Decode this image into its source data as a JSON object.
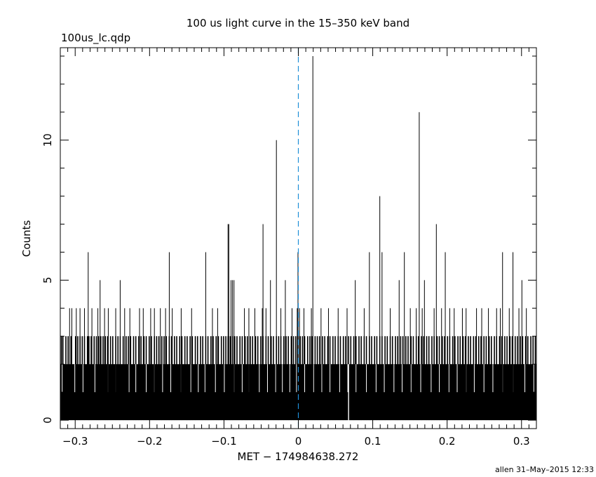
{
  "chart_data": {
    "type": "bar",
    "title": "100 us light curve in the 15–350 keV band",
    "subtitle": "100us_lc.qdp",
    "xlabel": "MET − 174984638.272",
    "ylabel": "Counts",
    "footer": "allen 31–May–2015 12:33",
    "xlim": [
      -0.32,
      0.32
    ],
    "ylim": [
      -0.3,
      13.3
    ],
    "x_ticks": [
      -0.3,
      -0.2,
      -0.1,
      0,
      0.1,
      0.2,
      0.3
    ],
    "x_tick_labels": [
      "−0.3",
      "−0.2",
      "−0.1",
      "0",
      "0.1",
      "0.2",
      "0.3"
    ],
    "y_ticks": [
      0,
      5,
      10
    ],
    "y_tick_labels": [
      "0",
      "5",
      "10"
    ],
    "bin_width": 0.0001,
    "baseline_counts": 2,
    "reference_line_x": 0,
    "reference_line_color": "#1f8fd8",
    "bar_color": "#000000",
    "grid": false,
    "spikes": [
      {
        "x": -0.3075,
        "y": 4
      },
      {
        "x": -0.3045,
        "y": 4
      },
      {
        "x": -0.2985,
        "y": 4
      },
      {
        "x": -0.2935,
        "y": 4
      },
      {
        "x": -0.2875,
        "y": 4
      },
      {
        "x": -0.2825,
        "y": 6
      },
      {
        "x": -0.2775,
        "y": 4
      },
      {
        "x": -0.2695,
        "y": 4
      },
      {
        "x": -0.2665,
        "y": 5
      },
      {
        "x": -0.2605,
        "y": 4
      },
      {
        "x": -0.2555,
        "y": 4
      },
      {
        "x": -0.2455,
        "y": 4
      },
      {
        "x": -0.2395,
        "y": 5
      },
      {
        "x": -0.2335,
        "y": 4
      },
      {
        "x": -0.2265,
        "y": 4
      },
      {
        "x": -0.2135,
        "y": 4
      },
      {
        "x": -0.2085,
        "y": 4
      },
      {
        "x": -0.1985,
        "y": 4
      },
      {
        "x": -0.1935,
        "y": 4
      },
      {
        "x": -0.1855,
        "y": 4
      },
      {
        "x": -0.1785,
        "y": 4
      },
      {
        "x": -0.1735,
        "y": 6
      },
      {
        "x": -0.1695,
        "y": 4
      },
      {
        "x": -0.1575,
        "y": 4
      },
      {
        "x": -0.1435,
        "y": 4
      },
      {
        "x": -0.1245,
        "y": 6
      },
      {
        "x": -0.1155,
        "y": 4
      },
      {
        "x": -0.1085,
        "y": 4
      },
      {
        "x": -0.0945,
        "y": 7
      },
      {
        "x": -0.0935,
        "y": 7
      },
      {
        "x": -0.0905,
        "y": 5
      },
      {
        "x": -0.0885,
        "y": 5
      },
      {
        "x": -0.0865,
        "y": 5
      },
      {
        "x": -0.0725,
        "y": 4
      },
      {
        "x": -0.0665,
        "y": 4
      },
      {
        "x": -0.0585,
        "y": 4
      },
      {
        "x": -0.0485,
        "y": 4
      },
      {
        "x": -0.0475,
        "y": 7
      },
      {
        "x": -0.0435,
        "y": 4
      },
      {
        "x": -0.0375,
        "y": 5
      },
      {
        "x": -0.0295,
        "y": 10
      },
      {
        "x": -0.0235,
        "y": 4
      },
      {
        "x": -0.0175,
        "y": 5
      },
      {
        "x": -0.0085,
        "y": 4
      },
      {
        "x": -0.0015,
        "y": 4
      },
      {
        "x": -0.0005,
        "y": 6
      },
      {
        "x": 0.0015,
        "y": 4
      },
      {
        "x": 0.0075,
        "y": 4
      },
      {
        "x": 0.0175,
        "y": 4
      },
      {
        "x": 0.0195,
        "y": 13
      },
      {
        "x": 0.0305,
        "y": 4
      },
      {
        "x": 0.0405,
        "y": 4
      },
      {
        "x": 0.0535,
        "y": 4
      },
      {
        "x": 0.0655,
        "y": 4
      },
      {
        "x": 0.0765,
        "y": 5
      },
      {
        "x": 0.0885,
        "y": 4
      },
      {
        "x": 0.0955,
        "y": 6
      },
      {
        "x": 0.1095,
        "y": 8
      },
      {
        "x": 0.1125,
        "y": 6
      },
      {
        "x": 0.1235,
        "y": 4
      },
      {
        "x": 0.1355,
        "y": 5
      },
      {
        "x": 0.1425,
        "y": 6
      },
      {
        "x": 0.1505,
        "y": 4
      },
      {
        "x": 0.1585,
        "y": 4
      },
      {
        "x": 0.1625,
        "y": 11
      },
      {
        "x": 0.1665,
        "y": 4
      },
      {
        "x": 0.1695,
        "y": 5
      },
      {
        "x": 0.1825,
        "y": 4
      },
      {
        "x": 0.1855,
        "y": 7
      },
      {
        "x": 0.1925,
        "y": 4
      },
      {
        "x": 0.1975,
        "y": 6
      },
      {
        "x": 0.2035,
        "y": 4
      },
      {
        "x": 0.2095,
        "y": 4
      },
      {
        "x": 0.2205,
        "y": 4
      },
      {
        "x": 0.2255,
        "y": 4
      },
      {
        "x": 0.2395,
        "y": 4
      },
      {
        "x": 0.2465,
        "y": 4
      },
      {
        "x": 0.2555,
        "y": 4
      },
      {
        "x": 0.2665,
        "y": 4
      },
      {
        "x": 0.2715,
        "y": 4
      },
      {
        "x": 0.2745,
        "y": 6
      },
      {
        "x": 0.2835,
        "y": 4
      },
      {
        "x": 0.2885,
        "y": 6
      },
      {
        "x": 0.2965,
        "y": 4
      },
      {
        "x": 0.3005,
        "y": 5
      },
      {
        "x": 0.3065,
        "y": 4
      }
    ],
    "triples": [
      -0.3185,
      -0.3165,
      -0.3125,
      -0.3095,
      -0.3055,
      -0.2995,
      -0.2965,
      -0.2935,
      -0.2905,
      -0.2875,
      -0.2835,
      -0.2815,
      -0.2785,
      -0.2745,
      -0.2715,
      -0.2685,
      -0.2655,
      -0.2625,
      -0.2595,
      -0.2565,
      -0.2525,
      -0.2495,
      -0.2455,
      -0.2425,
      -0.2395,
      -0.2355,
      -0.2315,
      -0.2285,
      -0.2255,
      -0.2215,
      -0.2185,
      -0.2145,
      -0.2115,
      -0.2075,
      -0.2045,
      -0.2005,
      -0.1975,
      -0.1935,
      -0.1905,
      -0.1875,
      -0.1835,
      -0.1805,
      -0.1775,
      -0.1735,
      -0.1705,
      -0.1665,
      -0.1635,
      -0.1595,
      -0.1565,
      -0.1525,
      -0.1495,
      -0.1455,
      -0.1425,
      -0.1385,
      -0.1355,
      -0.1315,
      -0.1285,
      -0.1245,
      -0.1215,
      -0.1175,
      -0.1145,
      -0.1105,
      -0.1075,
      -0.1035,
      -0.1005,
      -0.0975,
      -0.0945,
      -0.0915,
      -0.0885,
      -0.0855,
      -0.0825,
      -0.0785,
      -0.0755,
      -0.0715,
      -0.0685,
      -0.0645,
      -0.0615,
      -0.0575,
      -0.0545,
      -0.0505,
      -0.0475,
      -0.0435,
      -0.0405,
      -0.0365,
      -0.0335,
      -0.0295,
      -0.0265,
      -0.0235,
      -0.0195,
      -0.0165,
      -0.0135,
      -0.0095,
      -0.0065,
      -0.0035,
      -0.0005,
      0.0025,
      0.0055,
      0.0085,
      0.0125,
      0.0155,
      0.0185,
      0.0225,
      0.0255,
      0.0285,
      0.0325,
      0.0355,
      0.0395,
      0.0425,
      0.0465,
      0.0495,
      0.0535,
      0.0565,
      0.0605,
      0.0635,
      0.0675,
      0.0705,
      0.0745,
      0.0775,
      0.0815,
      0.0845,
      0.0885,
      0.0915,
      0.0955,
      0.0985,
      0.1025,
      0.1055,
      0.1095,
      0.1125,
      0.1165,
      0.1195,
      0.1235,
      0.1265,
      0.1305,
      0.1335,
      0.1375,
      0.1405,
      0.1445,
      0.1475,
      0.1515,
      0.1545,
      0.1585,
      0.1615,
      0.1655,
      0.1685,
      0.1725,
      0.1755,
      0.1795,
      0.1825,
      0.1865,
      0.1895,
      0.1935,
      0.1965,
      0.2005,
      0.2035,
      0.2075,
      0.2105,
      0.2145,
      0.2175,
      0.2215,
      0.2245,
      0.2285,
      0.2315,
      0.2355,
      0.2385,
      0.2425,
      0.2455,
      0.2495,
      0.2525,
      0.2565,
      0.2595,
      0.2635,
      0.2665,
      0.2705,
      0.2735,
      0.2775,
      0.2805,
      0.2845,
      0.2875,
      0.2915,
      0.2945,
      0.2985,
      0.3015,
      0.3055,
      0.3085,
      0.3125,
      0.3155,
      0.3185
    ],
    "ones": [
      -0.3175,
      -0.3005,
      -0.2895,
      -0.2735,
      -0.2555,
      -0.2455,
      -0.2275,
      -0.2185,
      -0.2045,
      -0.1935,
      -0.1825,
      -0.1715,
      -0.1575,
      -0.1445,
      -0.1345,
      -0.1255,
      -0.1115,
      -0.0995,
      -0.0865,
      -0.0755,
      -0.0665,
      -0.0525,
      -0.0415,
      -0.0305,
      -0.0215,
      -0.0115,
      -0.0025,
      0.0085,
      0.0205,
      0.0315,
      0.0425,
      0.0555,
      0.0665,
      0.0775,
      0.0915,
      0.1045,
      0.1155,
      0.1285,
      0.1395,
      0.1515,
      0.1645,
      0.1785,
      0.1895,
      0.2025,
      0.2135,
      0.2255,
      0.2365,
      0.2495,
      0.2615,
      0.2745,
      0.2885,
      0.3045,
      0.3165
    ],
    "zeros": [
      0.0675
    ]
  }
}
